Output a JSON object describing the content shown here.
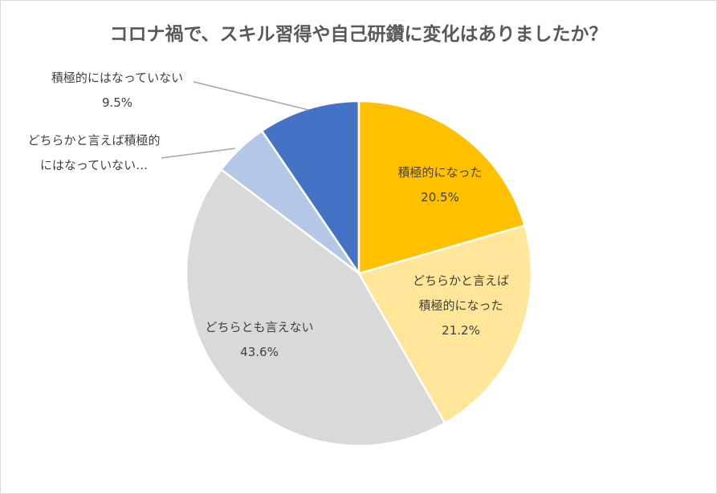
{
  "chart_data": {
    "type": "pie",
    "title": "コロナ禍で、スキル習得や自己研鑽に変化はありましたか？",
    "start_angle": "top",
    "direction": "clockwise",
    "slices": [
      {
        "label_lines": [
          "積極的になった"
        ],
        "value": 20.5,
        "value_label": "20.5%",
        "color": "#FFC000"
      },
      {
        "label_lines": [
          "どちらかと言えば",
          "積極的になった"
        ],
        "value": 21.2,
        "value_label": "21.2%",
        "color": "#FFE699"
      },
      {
        "label_lines": [
          "どちらとも言えない"
        ],
        "value": 43.6,
        "value_label": "43.6%",
        "color": "#D9D9D9"
      },
      {
        "label_lines": [
          "どちらかと言えば積極的",
          "にはなっていない…"
        ],
        "value": 5.2,
        "value_label": "",
        "color": "#B4C7E7"
      },
      {
        "label_lines": [
          "積極的にはなっていない"
        ],
        "value": 9.5,
        "value_label": "9.5%",
        "color": "#4472C4"
      }
    ]
  }
}
